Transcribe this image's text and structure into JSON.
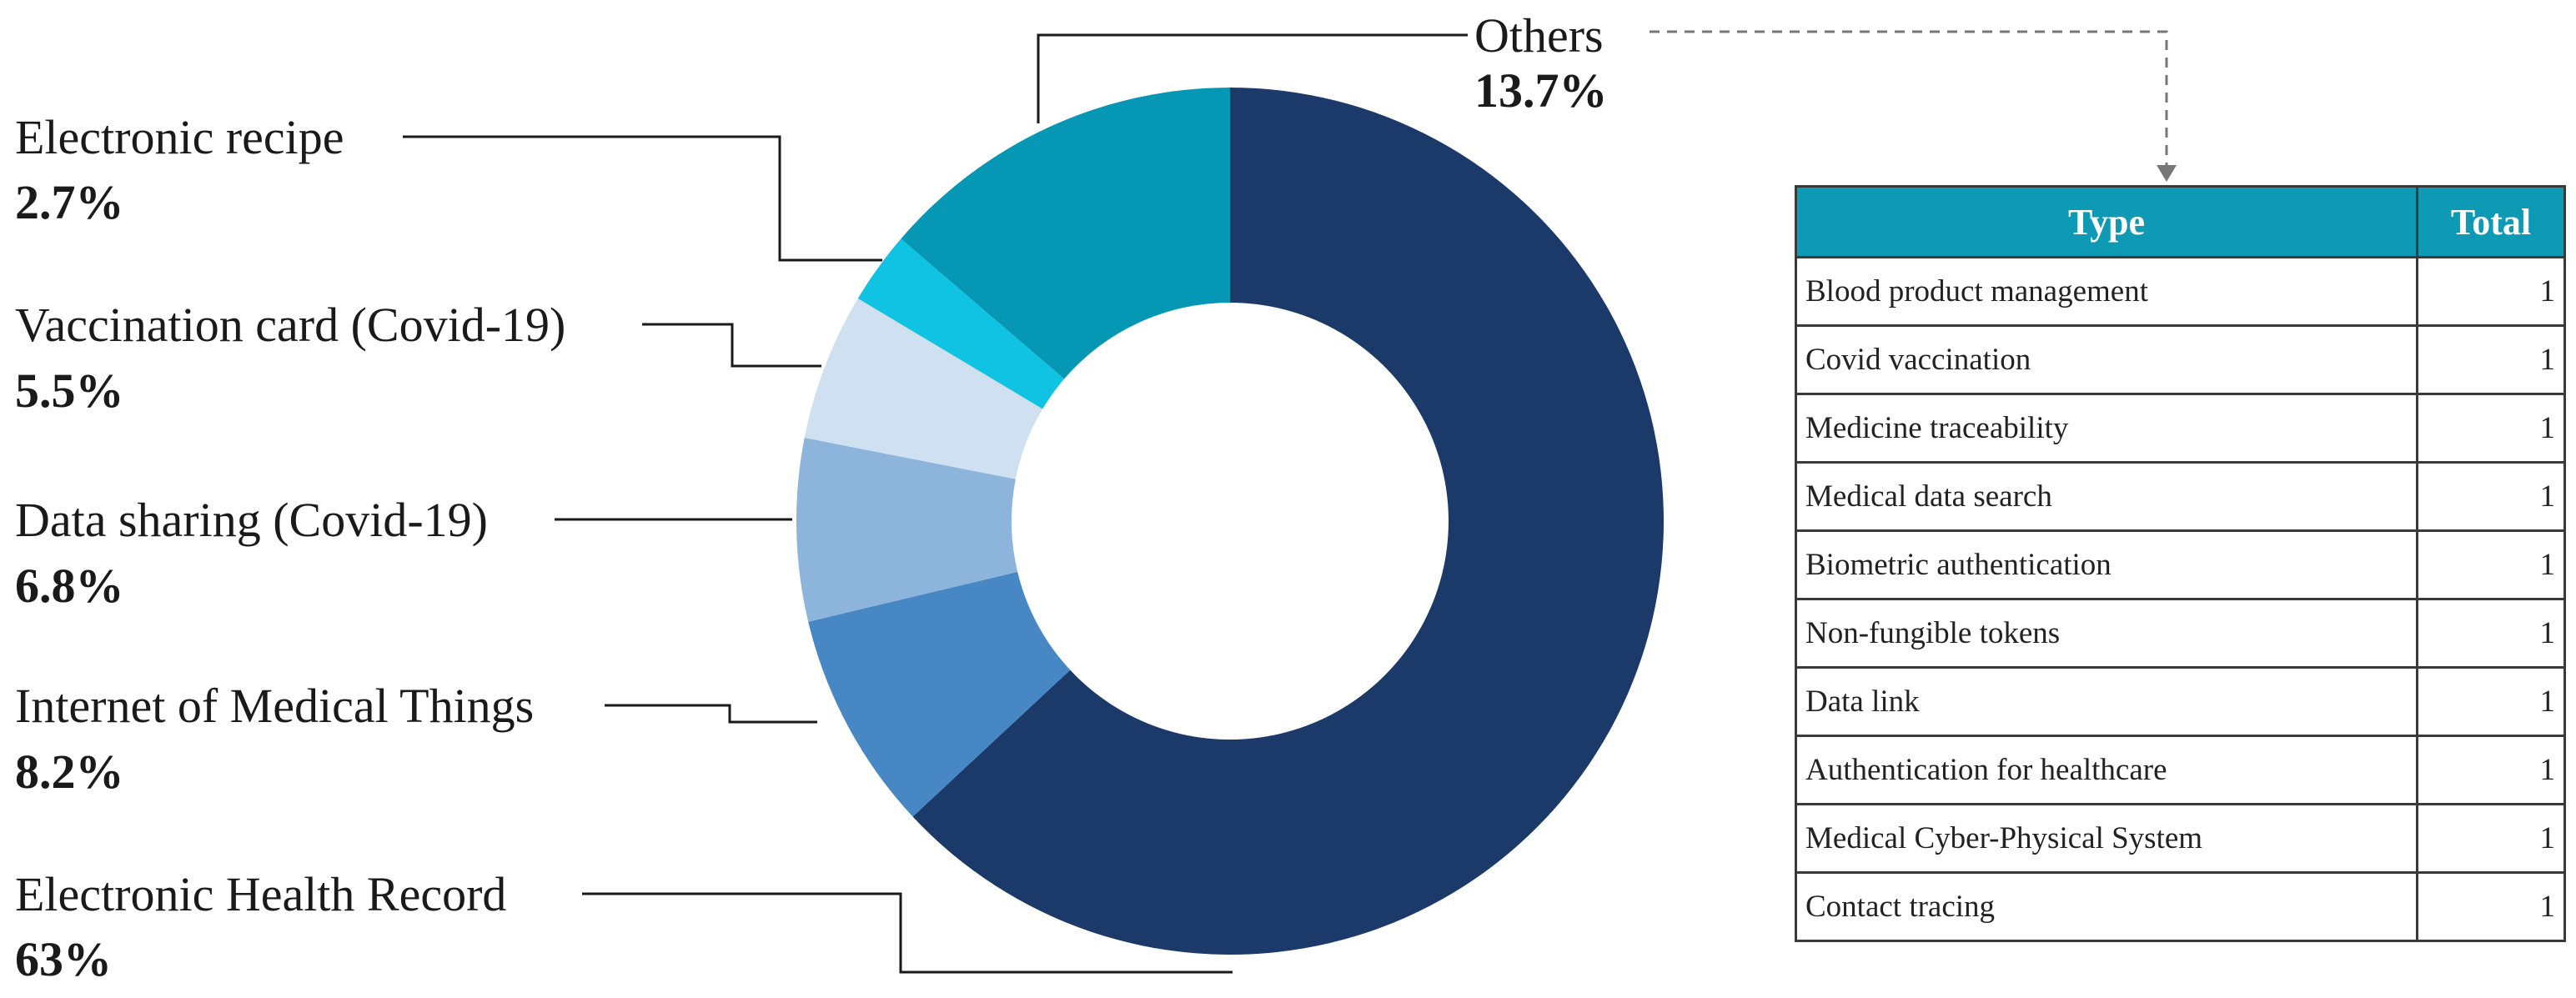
{
  "chart_data": {
    "type": "pie",
    "variant": "donut",
    "slices": [
      {
        "label": "Electronic Health Record",
        "value_text": "63%",
        "value": 63,
        "color": "#1b3a69"
      },
      {
        "label": "Internet of Medical Things",
        "value_text": "8.2%",
        "value": 8.2,
        "color": "#4787c4"
      },
      {
        "label": "Data sharing (Covid-19)",
        "value_text": "6.8%",
        "value": 6.8,
        "color": "#8db5dc"
      },
      {
        "label": "Vaccination card (Covid-19)",
        "value_text": "5.5%",
        "value": 5.5,
        "color": "#cfe0f1"
      },
      {
        "label": "Electronic recipe",
        "value_text": "2.7%",
        "value": 2.7,
        "color": "#10c3e2"
      },
      {
        "label": "Others",
        "value_text": "13.7%",
        "value": 13.7,
        "color": "#0597b3"
      }
    ]
  },
  "others_table": {
    "header_color": "#0e9ab4",
    "columns": [
      "Type",
      "Total"
    ],
    "rows": [
      {
        "type": "Blood product management",
        "total": "1"
      },
      {
        "type": "Covid vaccination",
        "total": "1"
      },
      {
        "type": "Medicine traceability",
        "total": "1"
      },
      {
        "type": "Medical data search",
        "total": "1"
      },
      {
        "type": "Biometric authentication",
        "total": "1"
      },
      {
        "type": "Non-fungible tokens",
        "total": "1"
      },
      {
        "type": "Data link",
        "total": "1"
      },
      {
        "type": "Authentication for healthcare",
        "total": "1"
      },
      {
        "type": "Medical Cyber-Physical System",
        "total": "1"
      },
      {
        "type": "Contact tracing",
        "total": "1"
      }
    ]
  }
}
